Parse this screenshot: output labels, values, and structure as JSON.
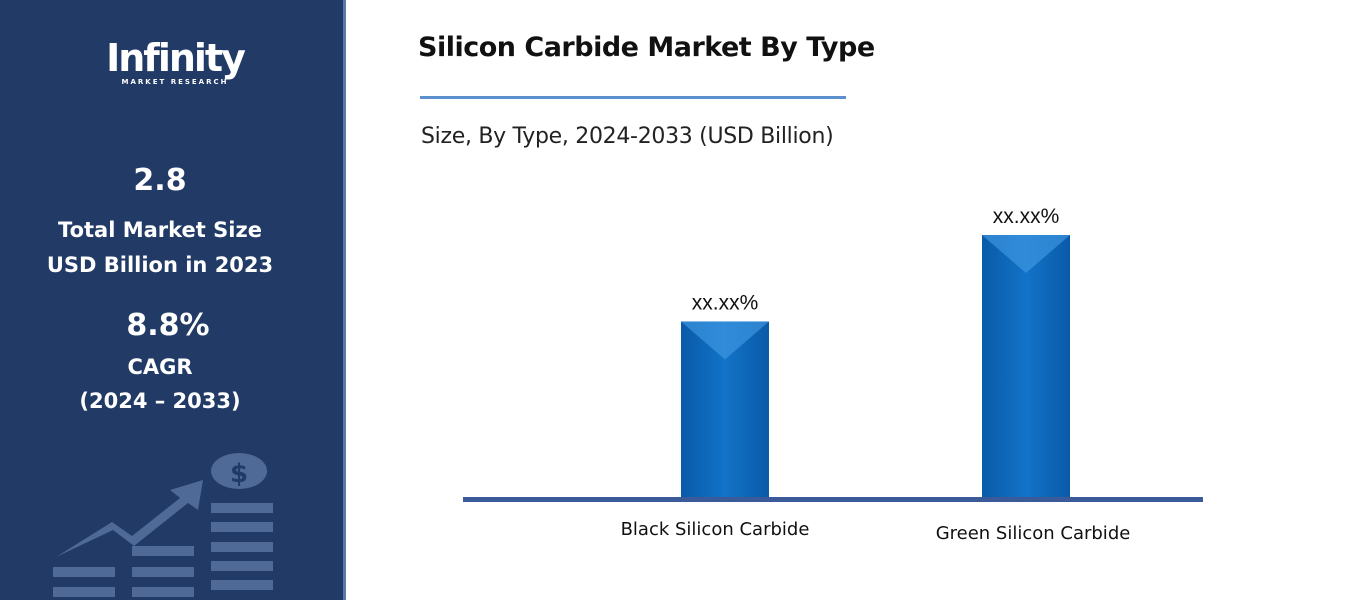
{
  "brand": {
    "logo_text": "Infinity",
    "logo_subtext": "MARKET RESEARCH"
  },
  "sidebar": {
    "market_size": "2.8",
    "market_size_label_1": "Total Market Size",
    "market_size_label_2": "USD Billion in 2023",
    "cagr": "8.8%",
    "cagr_label": "CAGR",
    "cagr_period": "(2024 – 2033)",
    "decor_icon": "growth-chart-dollar-icon"
  },
  "colors": {
    "sidebar": "#213a66",
    "bar": "#0b6bbf",
    "axis": "#3a5a9a",
    "accent": "#5b8fcf"
  },
  "chart_data": {
    "type": "bar",
    "title": "Silicon Carbide Market By Type",
    "subtitle": "Size, By Type, 2024-2033 (USD Billion)",
    "categories": [
      "Black Silicon Carbide",
      "Green Silicon Carbide"
    ],
    "values": [
      0.67,
      1.0
    ],
    "data_labels": [
      "xx.xx%",
      "xx.xx%"
    ],
    "xlabel": "",
    "ylabel": "",
    "grid": false,
    "legend": "none"
  }
}
